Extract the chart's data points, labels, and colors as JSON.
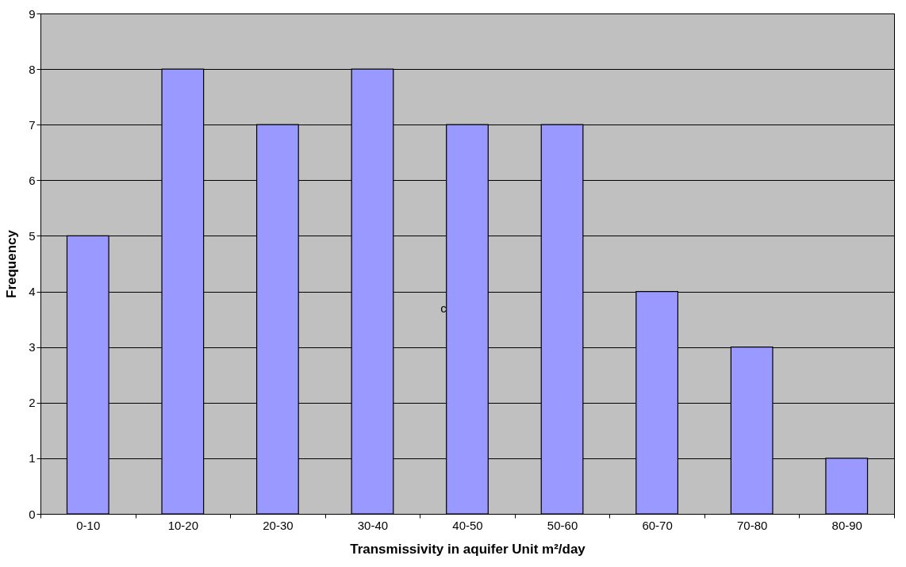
{
  "chart_data": {
    "type": "bar",
    "xlabel": "Transmissivity in aquifer Unit m²/day",
    "ylabel": "Frequency",
    "categories": [
      "0-10",
      "10-20",
      "20-30",
      "30-40",
      "40-50",
      "50-60",
      "60-70",
      "70-80",
      "80-90"
    ],
    "values": [
      5,
      8,
      7,
      8,
      7,
      7,
      4,
      3,
      1
    ],
    "color": "#9999ff",
    "ylim": [
      0,
      9
    ],
    "yticks": [
      0,
      1,
      2,
      3,
      4,
      5,
      6,
      7,
      8,
      9
    ],
    "grid": "y",
    "annotations": [
      "c"
    ]
  }
}
